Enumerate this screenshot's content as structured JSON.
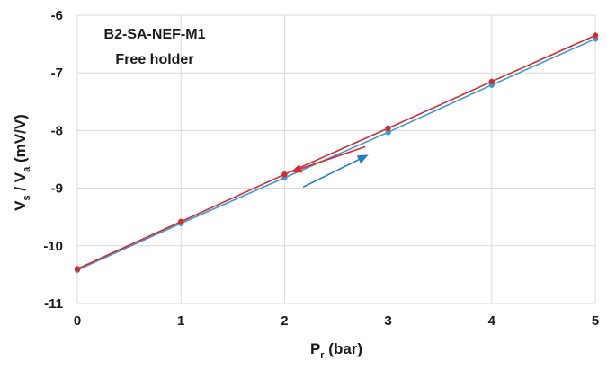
{
  "chart_data": {
    "type": "line",
    "title": "",
    "annotations": [
      "B2-SA-NEF-M1",
      "Free holder"
    ],
    "xlabel": {
      "main": "P",
      "sub": "r",
      "rest": " (bar)"
    },
    "ylabel": {
      "p1": "V",
      "s1": "s",
      "p2": " / V",
      "s2": "a",
      "p3": " (mV/V)"
    },
    "xlim": [
      0,
      5
    ],
    "ylim": [
      -11,
      -6
    ],
    "xticks": [
      0,
      1,
      2,
      3,
      4,
      5
    ],
    "yticks": [
      -11,
      -10,
      -9,
      -8,
      -7,
      -6
    ],
    "xtick_labels": [
      "0",
      "1",
      "2",
      "3",
      "4",
      "5"
    ],
    "ytick_labels": [
      "-11",
      "-10",
      "-9",
      "-8",
      "-7",
      "-6"
    ],
    "grid": true,
    "series": [
      {
        "color": "#3a9ad9",
        "x": [
          0,
          1,
          2,
          3,
          4,
          5
        ],
        "y": [
          -10.42,
          -9.61,
          -8.82,
          -8.03,
          -7.21,
          -6.41
        ]
      },
      {
        "color": "#d62b2b",
        "x": [
          0,
          1,
          2,
          3,
          4,
          5
        ],
        "y": [
          -10.4,
          -9.58,
          -8.76,
          -7.96,
          -7.15,
          -6.35
        ]
      }
    ],
    "arrows": [
      {
        "color": "#d62b2b",
        "direction": "decreasing"
      },
      {
        "color": "#1f7fc0",
        "direction": "increasing"
      }
    ]
  }
}
